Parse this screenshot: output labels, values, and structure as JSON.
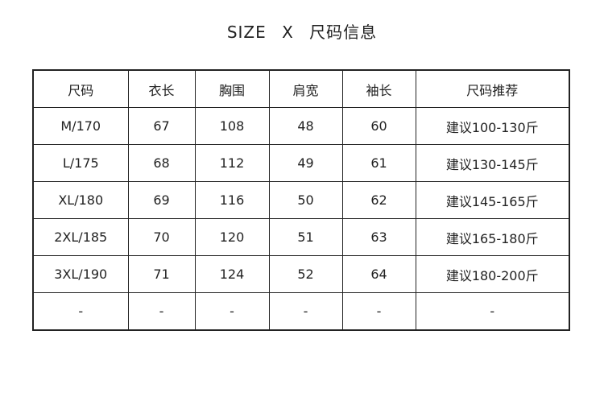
{
  "title": {
    "left": "SIZE",
    "sep": "X",
    "right": "尺码信息"
  },
  "table": {
    "headers": [
      "尺码",
      "衣长",
      "胸围",
      "肩宽",
      "袖长",
      "尺码推荐"
    ],
    "rows": [
      [
        "M/170",
        "67",
        "108",
        "48",
        "60",
        "建议100-130斤"
      ],
      [
        "L/175",
        "68",
        "112",
        "49",
        "61",
        "建议130-145斤"
      ],
      [
        "XL/180",
        "69",
        "116",
        "50",
        "62",
        "建议145-165斤"
      ],
      [
        "2XL/185",
        "70",
        "120",
        "51",
        "63",
        "建议165-180斤"
      ],
      [
        "3XL/190",
        "71",
        "124",
        "52",
        "64",
        "建议180-200斤"
      ],
      [
        "-",
        "-",
        "-",
        "-",
        "-",
        "-"
      ]
    ]
  }
}
